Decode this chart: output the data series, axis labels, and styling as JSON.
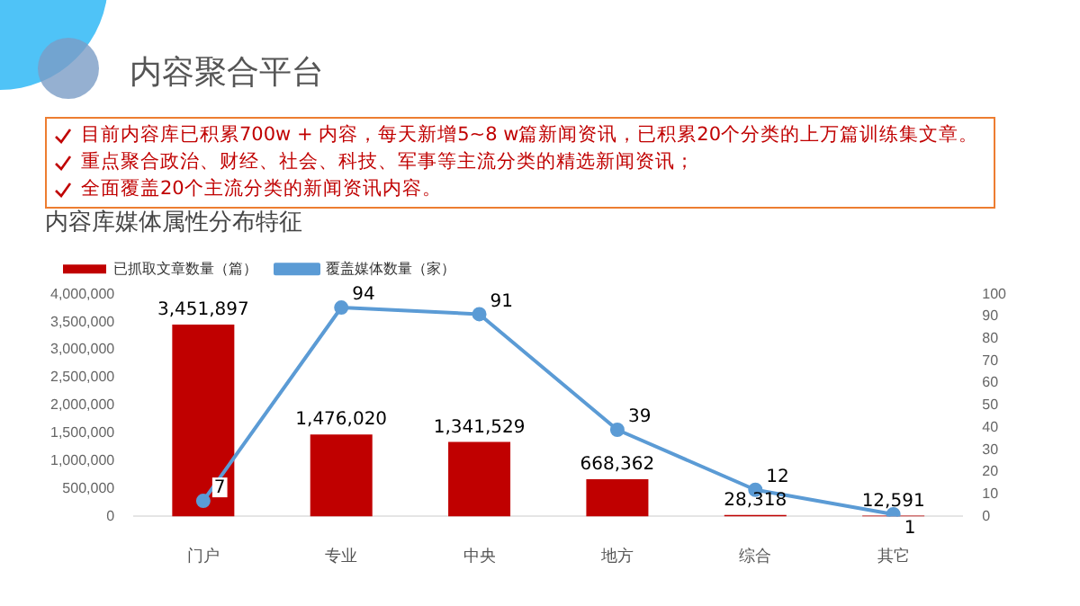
{
  "chart_data": {
    "type": "bar",
    "title": "内容库媒体属性分布特征",
    "annotations": [
      "内容聚合平台",
      "目前内容库已积累700w + 内容，每天新增5~8 w篇新闻资讯，已积累20个分类的上万篇训练集文章。",
      "重点聚合政治、财经、社会、科技、军事等主流分类的精选新闻资讯；",
      "全面覆盖20个主流分类的新闻资讯内容。"
    ],
    "categories": [
      "门户",
      "专业",
      "中央",
      "地方",
      "综合",
      "其它"
    ],
    "series": [
      {
        "name": "已抓取文章数量（篇）",
        "color": "#c00000",
        "values": [
          3451897,
          1476020,
          1341529,
          668362,
          28318,
          12591
        ],
        "value_labels": [
          "3,451,897",
          "1,476,020",
          "1,341,529",
          "668,362",
          "28,318",
          "12,591"
        ]
      },
      {
        "name": "覆盖媒体数量（家）",
        "type": "line",
        "axis": "y2",
        "color": "#5b9bd5",
        "marker": "circle",
        "values": [
          7,
          94,
          91,
          39,
          12,
          1
        ],
        "value_labels": [
          "7",
          "94",
          "91",
          "39",
          "12",
          "1"
        ]
      }
    ],
    "ylim": [
      0,
      4000000
    ],
    "yticks": [
      {
        "value": 0,
        "label": "0"
      },
      {
        "value": 500000,
        "label": "500,000"
      },
      {
        "value": 1000000,
        "label": "1,000,000"
      },
      {
        "value": 1500000,
        "label": "1,500,000"
      },
      {
        "value": 2000000,
        "label": "2,000,000"
      },
      {
        "value": 2500000,
        "label": "2,500,000"
      },
      {
        "value": 3000000,
        "label": "3,000,000"
      },
      {
        "value": 3500000,
        "label": "3,500,000"
      },
      {
        "value": 4000000,
        "label": "4,000,000"
      }
    ],
    "y2lim": [
      0,
      100
    ],
    "y2ticks": [
      0,
      10,
      20,
      30,
      40,
      50,
      60,
      70,
      80,
      90,
      100
    ],
    "grid": false,
    "legend": "top left"
  }
}
